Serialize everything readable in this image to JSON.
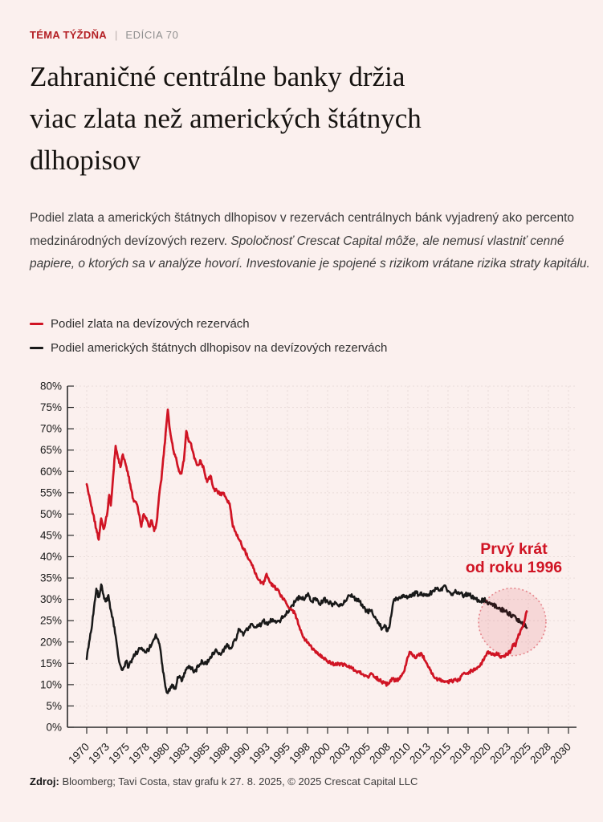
{
  "page": {
    "background": "#fbf0ee",
    "accent_red": "#d01424",
    "line_black": "#191919"
  },
  "header": {
    "kicker": "TÉMA TÝŽDŇA",
    "divider": "|",
    "edition": "EDÍCIA 70"
  },
  "title_lines": [
    "Zahraničné centrálne banky držia",
    "viac zlata než amerických štátnych",
    "dlhopisov"
  ],
  "intro": {
    "normal": "Podiel zlata a amerických štátnych dlhopisov v rezervách centrálnych bánk vyjadrený ako percento medzinárodných devízových rezerv. ",
    "italic": "Spoločnosť Crescat Capital môže, ale nemusí vlastniť cenné papiere, o ktorých sa v analýze hovorí. Investovanie je spojené s rizikom vrátane rizika straty kapitálu."
  },
  "legend": [
    {
      "label": "Podiel zlata na devízových rezervách",
      "color": "#d01424"
    },
    {
      "label": "Podiel amerických štátnych dlhopisov na devízových rezervách",
      "color": "#191919"
    }
  ],
  "chart_data": {
    "type": "line",
    "title": "",
    "xlabel": "",
    "ylabel": "",
    "ylim": [
      0,
      80
    ],
    "y_tick_step": 5,
    "y_tick_suffix": "%",
    "xlim": [
      1970,
      2031
    ],
    "x_ticks": [
      1970,
      1973,
      1975,
      1978,
      1980,
      1983,
      1985,
      1988,
      1990,
      1993,
      1995,
      1998,
      2000,
      2003,
      2005,
      2008,
      2010,
      2013,
      2015,
      2018,
      2020,
      2023,
      2025,
      2028,
      2030
    ],
    "grid": "dashed",
    "legend_position": "above-chart",
    "annotation": {
      "text_lines": [
        "Prvý krát",
        "od roku 1996"
      ],
      "color": "#d01424",
      "text_at": {
        "year": 2023.2,
        "value": 40.7
      },
      "circle_at": {
        "year": 2023.0,
        "value": 24.7,
        "radius_px": 42
      }
    },
    "series": [
      {
        "name": "Podiel zlata na devízových rezervách",
        "color": "#d01424",
        "points": [
          [
            1970,
            57
          ],
          [
            1970.4,
            53.5
          ],
          [
            1970.8,
            50
          ],
          [
            1971.2,
            46.5
          ],
          [
            1971.5,
            44
          ],
          [
            1971.8,
            49
          ],
          [
            1972.1,
            46.5
          ],
          [
            1972.5,
            49.5
          ],
          [
            1972.8,
            54.5
          ],
          [
            1973,
            52
          ],
          [
            1973.3,
            59
          ],
          [
            1973.6,
            66
          ],
          [
            1973.9,
            63
          ],
          [
            1974.2,
            61
          ],
          [
            1974.5,
            64
          ],
          [
            1974.8,
            62
          ],
          [
            1975.1,
            60
          ],
          [
            1975.5,
            56
          ],
          [
            1975.8,
            53.5
          ],
          [
            1976.2,
            52.5
          ],
          [
            1976.5,
            50
          ],
          [
            1976.8,
            47
          ],
          [
            1977.1,
            50
          ],
          [
            1977.5,
            48.5
          ],
          [
            1977.8,
            47
          ],
          [
            1978.1,
            48.5
          ],
          [
            1978.4,
            46
          ],
          [
            1978.7,
            48
          ],
          [
            1979,
            54
          ],
          [
            1979.3,
            58
          ],
          [
            1979.6,
            64
          ],
          [
            1979.9,
            70.5
          ],
          [
            1980.1,
            74.5
          ],
          [
            1980.3,
            70.5
          ],
          [
            1980.6,
            67
          ],
          [
            1980.9,
            64
          ],
          [
            1981.2,
            62.5
          ],
          [
            1981.5,
            60
          ],
          [
            1981.8,
            59.5
          ],
          [
            1982.1,
            62.5
          ],
          [
            1982.4,
            69.5
          ],
          [
            1982.7,
            67
          ],
          [
            1983,
            66.5
          ],
          [
            1983.4,
            63
          ],
          [
            1983.8,
            61.5
          ],
          [
            1984.2,
            62.5
          ],
          [
            1984.6,
            60.5
          ],
          [
            1985,
            57.5
          ],
          [
            1985.4,
            59
          ],
          [
            1985.8,
            56
          ],
          [
            1986.2,
            55.5
          ],
          [
            1986.6,
            54.5
          ],
          [
            1987,
            55
          ],
          [
            1987.4,
            53.5
          ],
          [
            1987.8,
            52.5
          ],
          [
            1988.2,
            47
          ],
          [
            1988.6,
            45.5
          ],
          [
            1989,
            44
          ],
          [
            1989.5,
            42
          ],
          [
            1990,
            40
          ],
          [
            1990.5,
            38.5
          ],
          [
            1991,
            36
          ],
          [
            1991.5,
            34.5
          ],
          [
            1992,
            33.5
          ],
          [
            1992.4,
            36
          ],
          [
            1992.8,
            34
          ],
          [
            1993.2,
            33
          ],
          [
            1993.6,
            32.5
          ],
          [
            1994,
            31.5
          ],
          [
            1994.5,
            30
          ],
          [
            1995,
            28.5
          ],
          [
            1995.5,
            27.5
          ],
          [
            1996,
            26.5
          ],
          [
            1996.5,
            23.5
          ],
          [
            1997,
            21
          ],
          [
            1997.5,
            19.8
          ],
          [
            1998,
            18.8
          ],
          [
            1998.5,
            17.5
          ],
          [
            1999,
            16.8
          ],
          [
            1999.5,
            16.2
          ],
          [
            2000,
            15.5
          ],
          [
            2000.5,
            14.8
          ],
          [
            2001,
            15
          ],
          [
            2001.5,
            14.5
          ],
          [
            2002,
            14.8
          ],
          [
            2002.5,
            14.3
          ],
          [
            2003,
            13.8
          ],
          [
            2003.5,
            13.2
          ],
          [
            2004,
            12.8
          ],
          [
            2004.5,
            12.2
          ],
          [
            2005,
            11.8
          ],
          [
            2005.5,
            12.5
          ],
          [
            2006,
            11.8
          ],
          [
            2006.5,
            11
          ],
          [
            2007,
            10.5
          ],
          [
            2007.5,
            10
          ],
          [
            2008,
            11.5
          ],
          [
            2008.5,
            10.8
          ],
          [
            2009,
            11.5
          ],
          [
            2009.5,
            13
          ],
          [
            2010,
            16.5
          ],
          [
            2010.3,
            17.5
          ],
          [
            2010.7,
            16.8
          ],
          [
            2011,
            16.2
          ],
          [
            2011.4,
            17.3
          ],
          [
            2011.8,
            16.8
          ],
          [
            2012.2,
            15.5
          ],
          [
            2012.6,
            14
          ],
          [
            2013,
            12.5
          ],
          [
            2013.5,
            11.5
          ],
          [
            2014,
            11
          ],
          [
            2014.5,
            10.8
          ],
          [
            2015,
            10.5
          ],
          [
            2015.5,
            10.8
          ],
          [
            2016,
            11
          ],
          [
            2016.5,
            11.3
          ],
          [
            2017,
            12.8
          ],
          [
            2017.5,
            12.5
          ],
          [
            2018,
            13.4
          ],
          [
            2018.5,
            13.8
          ],
          [
            2019,
            14.5
          ],
          [
            2019.5,
            16
          ],
          [
            2020,
            17.8
          ],
          [
            2020.4,
            17
          ],
          [
            2020.8,
            16.8
          ],
          [
            2021.2,
            17.2
          ],
          [
            2021.6,
            16.3
          ],
          [
            2022,
            16.8
          ],
          [
            2022.4,
            17
          ],
          [
            2022.8,
            18
          ],
          [
            2023.1,
            19.5
          ],
          [
            2023.4,
            19
          ],
          [
            2023.7,
            21
          ],
          [
            2024,
            22.5
          ],
          [
            2024.3,
            23.5
          ],
          [
            2024.6,
            25.5
          ],
          [
            2024.8,
            27.2
          ]
        ]
      },
      {
        "name": "Podiel amerických štátnych dlhopisov na devízových rezervách",
        "color": "#191919",
        "points": [
          [
            1970,
            16
          ],
          [
            1970.3,
            20
          ],
          [
            1970.6,
            23
          ],
          [
            1970.9,
            28
          ],
          [
            1971.2,
            32.5
          ],
          [
            1971.5,
            30.5
          ],
          [
            1971.8,
            33.5
          ],
          [
            1972.1,
            31
          ],
          [
            1972.4,
            29.5
          ],
          [
            1972.7,
            31
          ],
          [
            1973,
            27.5
          ],
          [
            1973.3,
            25
          ],
          [
            1973.6,
            21.5
          ],
          [
            1973.9,
            17
          ],
          [
            1974.2,
            14.5
          ],
          [
            1974.5,
            13.5
          ],
          [
            1974.9,
            15.5
          ],
          [
            1975.2,
            14
          ],
          [
            1975.5,
            15.5
          ],
          [
            1975.8,
            16.5
          ],
          [
            1976.2,
            17.5
          ],
          [
            1976.6,
            18.5
          ],
          [
            1977,
            18
          ],
          [
            1977.4,
            17.5
          ],
          [
            1977.8,
            18.5
          ],
          [
            1978.2,
            20
          ],
          [
            1978.6,
            21.8
          ],
          [
            1978.9,
            20.5
          ],
          [
            1979.2,
            18
          ],
          [
            1979.5,
            13
          ],
          [
            1979.8,
            9.5
          ],
          [
            1980.1,
            8
          ],
          [
            1980.4,
            9.2
          ],
          [
            1980.7,
            9.8
          ],
          [
            1981,
            9
          ],
          [
            1981.4,
            11.8
          ],
          [
            1981.9,
            11
          ],
          [
            1982.4,
            13.5
          ],
          [
            1982.9,
            14.2
          ],
          [
            1983.4,
            13
          ],
          [
            1983.9,
            14.2
          ],
          [
            1984.4,
            15.5
          ],
          [
            1984.9,
            14.8
          ],
          [
            1985.4,
            16.5
          ],
          [
            1986,
            18
          ],
          [
            1986.7,
            17
          ],
          [
            1987.4,
            19.2
          ],
          [
            1988,
            18.5
          ],
          [
            1988.5,
            20.5
          ],
          [
            1989,
            23
          ],
          [
            1989.5,
            21.5
          ],
          [
            1990,
            23
          ],
          [
            1990.5,
            24.2
          ],
          [
            1991,
            23.5
          ],
          [
            1991.5,
            23.8
          ],
          [
            1992,
            25
          ],
          [
            1992.5,
            24
          ],
          [
            1993,
            25.2
          ],
          [
            1993.5,
            25
          ],
          [
            1994,
            25
          ],
          [
            1994.5,
            26
          ],
          [
            1995,
            27
          ],
          [
            1995.5,
            28.5
          ],
          [
            1996,
            29.5
          ],
          [
            1996.5,
            30.5
          ],
          [
            1997,
            30
          ],
          [
            1997.5,
            31.2
          ],
          [
            1998,
            29.5
          ],
          [
            1998.5,
            30.3
          ],
          [
            1999,
            29
          ],
          [
            1999.5,
            30
          ],
          [
            2000,
            29.5
          ],
          [
            2000.5,
            28.8
          ],
          [
            2001,
            29.2
          ],
          [
            2001.5,
            28.8
          ],
          [
            2002,
            29
          ],
          [
            2002.5,
            30.5
          ],
          [
            2003,
            31.2
          ],
          [
            2003.5,
            30
          ],
          [
            2004,
            29.5
          ],
          [
            2004.5,
            28
          ],
          [
            2005,
            27
          ],
          [
            2005.5,
            27.5
          ],
          [
            2006,
            25.5
          ],
          [
            2006.4,
            24.3
          ],
          [
            2006.8,
            23.2
          ],
          [
            2007.1,
            24
          ],
          [
            2007.4,
            22.5
          ],
          [
            2007.7,
            23.5
          ],
          [
            2008,
            27
          ],
          [
            2008.2,
            29.5
          ],
          [
            2008.6,
            30
          ],
          [
            2009,
            30.5
          ],
          [
            2009.5,
            31
          ],
          [
            2010,
            30.5
          ],
          [
            2010.5,
            30.8
          ],
          [
            2011,
            31.5
          ],
          [
            2011.5,
            31
          ],
          [
            2012,
            31.3
          ],
          [
            2012.5,
            30.8
          ],
          [
            2013,
            31.8
          ],
          [
            2013.5,
            32.5
          ],
          [
            2014,
            32
          ],
          [
            2014.5,
            33.2
          ],
          [
            2015,
            32
          ],
          [
            2015.5,
            31.3
          ],
          [
            2016,
            31.8
          ],
          [
            2016.5,
            31.5
          ],
          [
            2017,
            30.8
          ],
          [
            2017.5,
            31.4
          ],
          [
            2018,
            30.5
          ],
          [
            2018.5,
            30.2
          ],
          [
            2019,
            29.5
          ],
          [
            2019.5,
            30
          ],
          [
            2020,
            28.8
          ],
          [
            2020.5,
            29
          ],
          [
            2021,
            28.3
          ],
          [
            2021.5,
            27.8
          ],
          [
            2022,
            27.2
          ],
          [
            2022.5,
            26.8
          ],
          [
            2023,
            26.2
          ],
          [
            2023.5,
            25.5
          ],
          [
            2024,
            24.8
          ],
          [
            2024.4,
            24.2
          ],
          [
            2024.8,
            23.3
          ]
        ]
      }
    ]
  },
  "footer": {
    "source_label": "Zdroj:",
    "source_text": " Bloomberg; Tavi Costa, stav grafu k 27. 8. 2025, © 2025 Crescat Capital LLC"
  }
}
